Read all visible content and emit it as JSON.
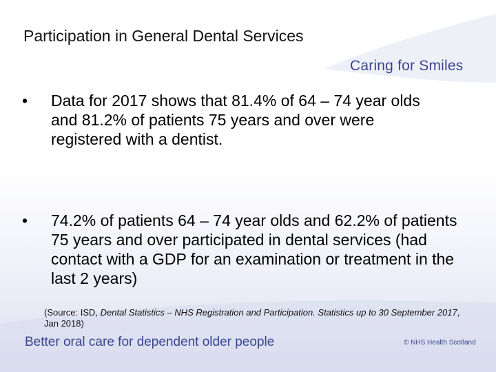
{
  "slide": {
    "title": "Participation in General Dental Services",
    "logo_text": "Caring for Smiles",
    "bullet_glyph": "•",
    "bullets": [
      "Data for 2017 shows that 81.4% of 64 – 74 year olds and 81.2% of patients 75 years and over were registered with a dentist.",
      "74.2% of patients 64 – 74 year olds and 62.2% of patients 75 years and over participated in dental services (had contact with a GDP for an examination or treatment in the last 2 years)"
    ],
    "source": {
      "prefix": "(Source: ISD, ",
      "italic": "Dental Statistics – NHS Registration and Participation. Statistics up to 30 September 2017",
      "suffix": ", Jan 2018)"
    },
    "footer_left": "Better oral care for dependent older people",
    "footer_right": "© NHS Health Scotland"
  },
  "colors": {
    "brand": "#3a4690",
    "text": "#000000"
  }
}
